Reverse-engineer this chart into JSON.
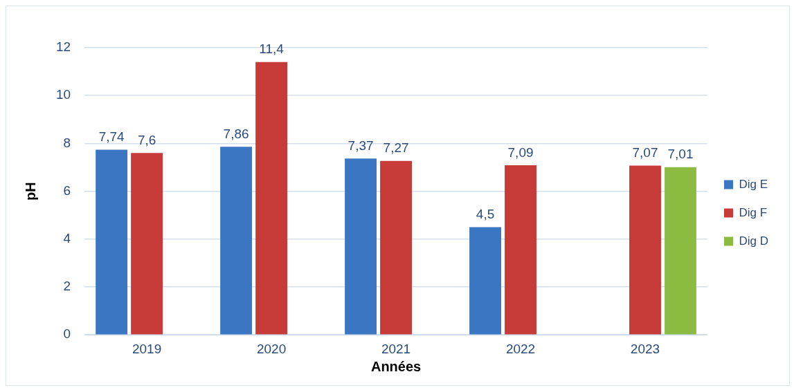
{
  "chart_data": {
    "type": "bar",
    "xlabel": "Années",
    "ylabel": "pH",
    "categories": [
      "2019",
      "2020",
      "2021",
      "2022",
      "2023"
    ],
    "series": [
      {
        "name": "Dig E",
        "color": "#3a76c2",
        "values": [
          7.74,
          7.86,
          7.37,
          4.5,
          null
        ],
        "value_labels": [
          "7,74",
          "7,86",
          "7,37",
          "4,5",
          null
        ]
      },
      {
        "name": "Dig F",
        "color": "#c63a38",
        "values": [
          7.6,
          11.4,
          7.27,
          7.09,
          7.07
        ],
        "value_labels": [
          "7,6",
          "11,4",
          "7,27",
          "7,09",
          "7,07"
        ]
      },
      {
        "name": "Dig D",
        "color": "#8bbb40",
        "values": [
          null,
          null,
          null,
          null,
          7.01
        ],
        "value_labels": [
          null,
          null,
          null,
          null,
          "7,01"
        ]
      }
    ],
    "ylim": [
      0,
      12
    ],
    "yticks": [
      0,
      2,
      4,
      6,
      8,
      10,
      12
    ],
    "grid": "y",
    "legend": "right"
  }
}
